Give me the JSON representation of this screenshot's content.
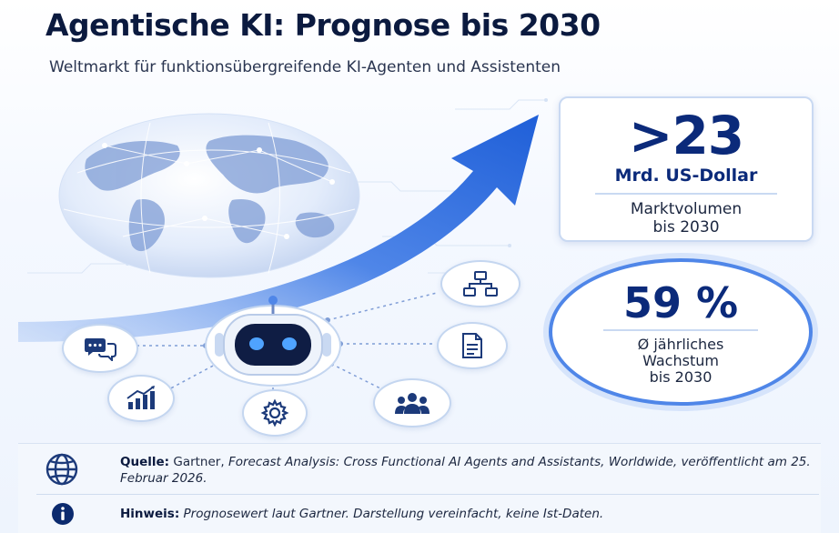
{
  "header": {
    "title": "Agentische KI: Prognose bis 2030",
    "subtitle": "Weltmarkt für funktionsübergreifende KI-Agenten und Assistenten"
  },
  "stats": {
    "market": {
      "value": ">23",
      "unit": "Mrd. US-Dollar",
      "label_line1": "Marktvolumen",
      "label_line2": "bis 2030"
    },
    "growth": {
      "value": "59 %",
      "label_line1": "Ø jährliches",
      "label_line2": "Wachstum",
      "label_line3": "bis 2030"
    }
  },
  "icons": {
    "globe": "globe-icon",
    "trend_arrow": "trend-arrow-icon",
    "robot": "robot-icon",
    "chat": "chat-bubbles-icon",
    "chart": "bar-chart-icon",
    "gear": "gear-icon",
    "workflow": "workflow-icon",
    "document": "document-icon",
    "team": "team-icon",
    "info": "info-icon"
  },
  "footer": {
    "source_label": "Quelle:",
    "source_text_plain": "Gartner,",
    "source_text_italic": "Forecast Analysis: Cross Functional AI Agents and Assistants, Worldwide, veröffentlicht am 25. Februar 2026.",
    "note_label": "Hinweis:",
    "note_text": "Prognosewert laut Gartner. Darstellung vereinfacht, keine Ist-Daten."
  },
  "colors": {
    "navy": "#0b1a3f",
    "accent_blue": "#2f6fe0",
    "light_blue": "#c9d9f2"
  }
}
